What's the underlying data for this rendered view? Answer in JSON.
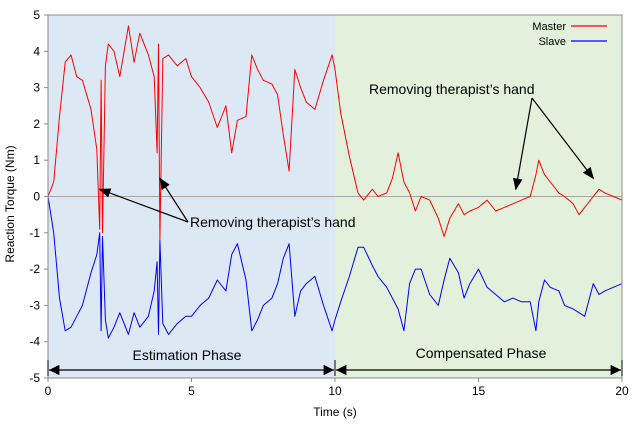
{
  "chart_data": {
    "type": "line",
    "xlabel": "Time (s)",
    "ylabel": "Reaction Torque (Nm)",
    "xlim": [
      0,
      20
    ],
    "ylim": [
      -5,
      5
    ],
    "x_ticks": [
      "0",
      "5",
      "10",
      "15",
      "20"
    ],
    "y_ticks": [
      "5",
      "4",
      "3",
      "2",
      "1",
      "0",
      "-1",
      "-2",
      "-3",
      "-4",
      "-5"
    ],
    "legend": {
      "position": "top-right"
    },
    "colors": {
      "master": "#ff0000",
      "slave": "#0000ff",
      "estimation_bg": "#dde8f5",
      "compensated_bg": "#e3f0db"
    },
    "series": [
      {
        "name": "Master",
        "x": [
          0.0,
          0.2,
          0.4,
          0.6,
          0.8,
          1.0,
          1.2,
          1.5,
          1.7,
          1.8,
          1.85,
          1.9,
          2.0,
          2.1,
          2.3,
          2.5,
          2.8,
          3.0,
          3.2,
          3.5,
          3.7,
          3.8,
          3.85,
          3.9,
          4.0,
          4.2,
          4.5,
          4.8,
          5.0,
          5.3,
          5.6,
          5.9,
          6.2,
          6.4,
          6.6,
          6.9,
          7.1,
          7.3,
          7.5,
          7.8,
          8.0,
          8.2,
          8.4,
          8.6,
          8.8,
          9.0,
          9.3,
          9.6,
          9.9,
          10.0,
          10.2,
          10.5,
          10.8,
          11.0,
          11.3,
          11.5,
          11.8,
          12.0,
          12.2,
          12.4,
          12.6,
          12.8,
          13.0,
          13.3,
          13.6,
          13.8,
          14.0,
          14.3,
          14.5,
          14.7,
          15.0,
          15.3,
          15.6,
          15.9,
          16.2,
          16.5,
          16.8,
          17.0,
          17.1,
          17.3,
          17.5,
          17.8,
          18.0,
          18.3,
          18.5,
          18.7,
          19.0,
          19.2,
          19.4,
          19.7,
          20.0
        ],
        "values": [
          0.0,
          0.4,
          2.2,
          3.7,
          3.9,
          3.3,
          3.2,
          2.4,
          1.3,
          -0.9,
          3.2,
          -1.0,
          3.6,
          4.2,
          4.0,
          3.3,
          4.7,
          3.7,
          4.5,
          3.9,
          3.3,
          1.2,
          4.2,
          -1.2,
          3.8,
          3.9,
          3.6,
          3.8,
          3.3,
          3.0,
          2.6,
          1.9,
          2.5,
          1.2,
          2.1,
          2.2,
          3.9,
          3.5,
          3.2,
          3.1,
          2.8,
          1.7,
          0.7,
          3.5,
          3.0,
          2.6,
          2.4,
          3.2,
          3.9,
          3.5,
          2.3,
          1.1,
          0.1,
          -0.1,
          0.2,
          0.0,
          0.1,
          0.5,
          1.2,
          0.4,
          0.1,
          -0.4,
          0.0,
          -0.1,
          -0.6,
          -1.1,
          -0.6,
          -0.2,
          -0.5,
          -0.4,
          -0.3,
          -0.1,
          -0.4,
          -0.3,
          -0.2,
          -0.1,
          0.0,
          0.6,
          1.0,
          0.6,
          0.4,
          0.1,
          0.0,
          -0.2,
          -0.5,
          -0.3,
          0.0,
          0.2,
          0.1,
          0.0,
          -0.1
        ]
      },
      {
        "name": "Slave",
        "x": [
          0.0,
          0.2,
          0.4,
          0.6,
          0.8,
          1.0,
          1.2,
          1.5,
          1.7,
          1.8,
          1.85,
          1.9,
          2.0,
          2.1,
          2.3,
          2.5,
          2.8,
          3.0,
          3.2,
          3.5,
          3.7,
          3.8,
          3.85,
          3.9,
          4.0,
          4.2,
          4.5,
          4.8,
          5.0,
          5.3,
          5.6,
          5.9,
          6.2,
          6.4,
          6.6,
          6.9,
          7.1,
          7.3,
          7.5,
          7.8,
          8.0,
          8.2,
          8.4,
          8.6,
          8.8,
          9.0,
          9.3,
          9.6,
          9.9,
          10.0,
          10.2,
          10.5,
          10.8,
          11.0,
          11.3,
          11.5,
          11.8,
          12.0,
          12.2,
          12.4,
          12.6,
          12.8,
          13.0,
          13.3,
          13.6,
          13.8,
          14.0,
          14.3,
          14.5,
          14.7,
          15.0,
          15.3,
          15.6,
          15.9,
          16.2,
          16.5,
          16.8,
          17.0,
          17.1,
          17.3,
          17.5,
          17.8,
          18.0,
          18.3,
          18.5,
          18.7,
          19.0,
          19.2,
          19.4,
          19.7,
          20.0
        ],
        "values": [
          0.0,
          -1.0,
          -2.8,
          -3.7,
          -3.6,
          -3.3,
          -3.0,
          -2.1,
          -1.6,
          -1.0,
          -3.7,
          -1.1,
          -3.4,
          -3.9,
          -3.6,
          -3.2,
          -3.8,
          -3.2,
          -3.6,
          -3.3,
          -2.6,
          -1.8,
          -3.8,
          -1.2,
          -3.5,
          -3.8,
          -3.5,
          -3.3,
          -3.3,
          -3.0,
          -2.8,
          -2.3,
          -2.6,
          -1.6,
          -1.3,
          -2.3,
          -3.7,
          -3.4,
          -3.0,
          -2.8,
          -2.4,
          -1.7,
          -1.3,
          -3.3,
          -2.6,
          -2.4,
          -2.2,
          -3.0,
          -3.7,
          -3.4,
          -2.9,
          -2.2,
          -1.4,
          -1.4,
          -1.9,
          -2.2,
          -2.5,
          -2.8,
          -3.1,
          -3.7,
          -2.4,
          -2.0,
          -2.0,
          -2.7,
          -3.0,
          -2.3,
          -1.7,
          -2.1,
          -2.8,
          -2.4,
          -2.0,
          -2.5,
          -2.7,
          -2.9,
          -2.8,
          -2.9,
          -2.9,
          -3.7,
          -2.9,
          -2.3,
          -2.5,
          -2.6,
          -3.0,
          -3.1,
          -3.2,
          -3.3,
          -2.4,
          -2.7,
          -2.6,
          -2.5,
          -2.4
        ]
      }
    ],
    "phases": [
      {
        "label": "Estimation Phase",
        "x_start": 0,
        "x_end": 10
      },
      {
        "label": "Compensated Phase",
        "x_start": 10,
        "x_end": 20
      }
    ],
    "annotations": [
      {
        "text": "Removing therapist’s hand",
        "arrow_targets": [
          [
            1.8,
            0.2
          ],
          [
            3.9,
            0.5
          ]
        ]
      },
      {
        "text": "Removing therapist’s hand",
        "arrow_targets": [
          [
            16.3,
            0.2
          ],
          [
            19.0,
            0.5
          ]
        ]
      }
    ]
  }
}
